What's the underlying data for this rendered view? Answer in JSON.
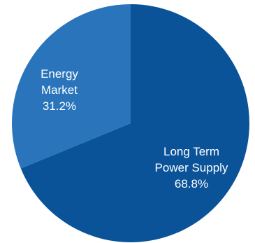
{
  "chart_data": {
    "type": "pie",
    "slices": [
      {
        "label_lines": [
          "Long Term",
          "Power Supply"
        ],
        "value": 68.8,
        "value_label": "68.8%",
        "color": "#0b5399"
      },
      {
        "label_lines": [
          "Energy",
          "Market"
        ],
        "value": 31.2,
        "value_label": "31.2%",
        "color": "#2a74bc"
      }
    ],
    "start_angle": "12 o'clock, clockwise",
    "legend": "none"
  }
}
